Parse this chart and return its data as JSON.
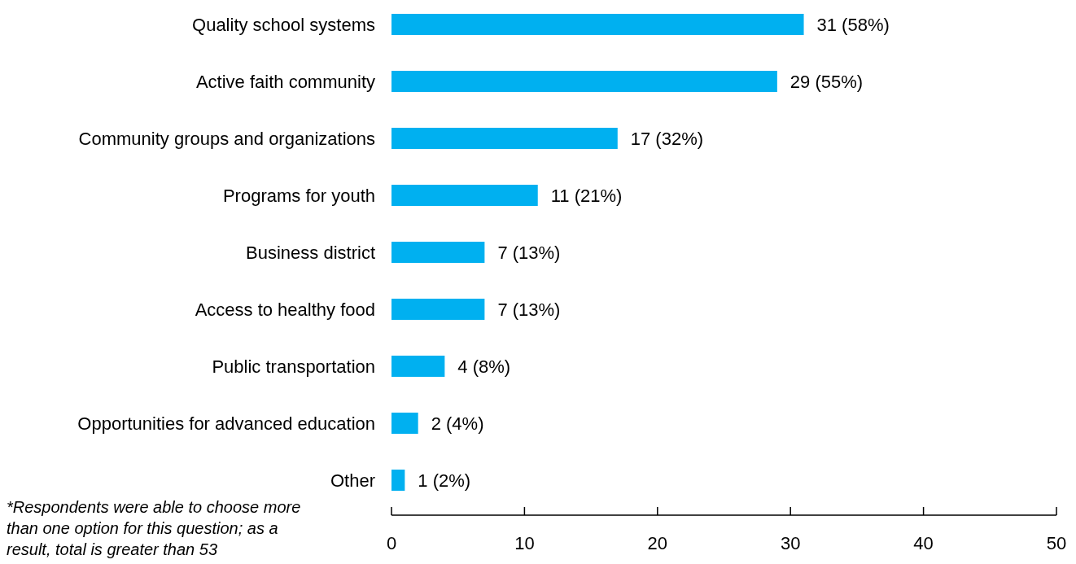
{
  "chart_data": {
    "type": "bar",
    "orientation": "horizontal",
    "categories": [
      "Quality school systems",
      "Active faith community",
      "Community groups and organizations",
      "Programs for youth",
      "Business district",
      "Access to healthy food",
      "Public transportation",
      "Opportunities for advanced education",
      "Other"
    ],
    "values": [
      31,
      29,
      17,
      11,
      7,
      7,
      4,
      2,
      1
    ],
    "value_labels": [
      "31 (58%)",
      "29 (55%)",
      "17 (32%)",
      "11 (21%)",
      "7 (13%)",
      "7 (13%)",
      "4 (8%)",
      "2 (4%)",
      "1 (2%)"
    ],
    "color": "#00b0f0",
    "xlim": [
      0,
      50
    ],
    "xticks": [
      0,
      10,
      20,
      30,
      40,
      50
    ],
    "grid": false,
    "annotations": [
      "*Respondents were able to choose more than one option for this question; as a result, total is greater than 53"
    ]
  }
}
